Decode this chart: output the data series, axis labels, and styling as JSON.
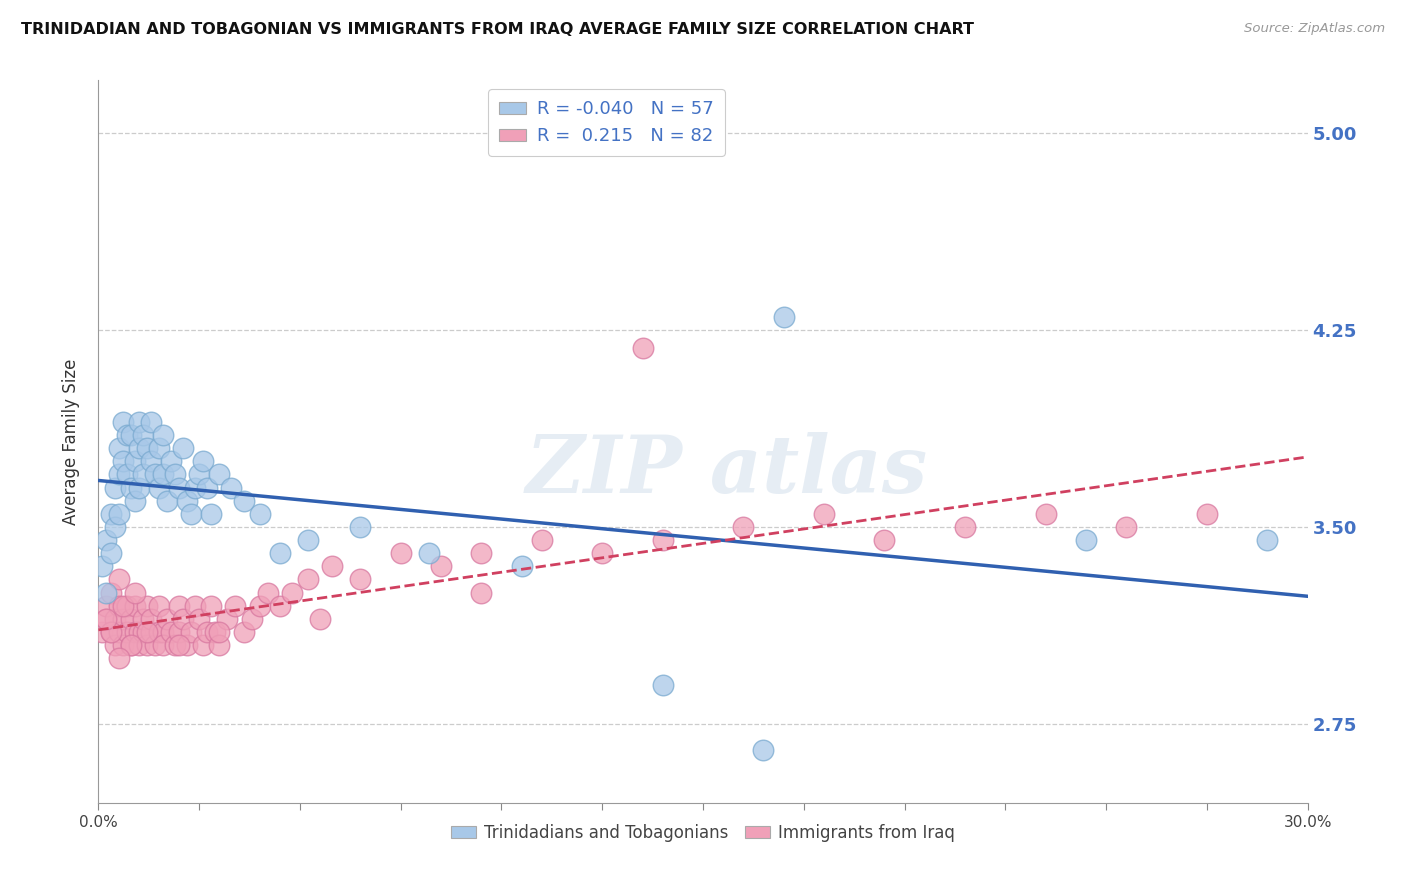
{
  "title": "TRINIDADIAN AND TOBAGONIAN VS IMMIGRANTS FROM IRAQ AVERAGE FAMILY SIZE CORRELATION CHART",
  "source": "Source: ZipAtlas.com",
  "ylabel": "Average Family Size",
  "yticks": [
    2.75,
    3.5,
    4.25,
    5.0
  ],
  "xmin": 0.0,
  "xmax": 0.3,
  "ymin": 2.45,
  "ymax": 5.2,
  "blue_R": -0.04,
  "blue_N": 57,
  "pink_R": 0.215,
  "pink_N": 82,
  "blue_label": "Trinidadians and Tobagonians",
  "pink_label": "Immigrants from Iraq",
  "blue_color": "#a8c8e8",
  "pink_color": "#f0a0b8",
  "blue_line_color": "#3060b0",
  "pink_line_color": "#d04060",
  "blue_edge_color": "#7aaad0",
  "pink_edge_color": "#d878a0",
  "blue_scatter_x": [
    0.001,
    0.002,
    0.002,
    0.003,
    0.003,
    0.004,
    0.004,
    0.005,
    0.005,
    0.005,
    0.006,
    0.006,
    0.007,
    0.007,
    0.008,
    0.008,
    0.009,
    0.009,
    0.01,
    0.01,
    0.01,
    0.011,
    0.011,
    0.012,
    0.013,
    0.013,
    0.014,
    0.015,
    0.015,
    0.016,
    0.016,
    0.017,
    0.018,
    0.019,
    0.02,
    0.021,
    0.022,
    0.023,
    0.024,
    0.025,
    0.026,
    0.027,
    0.028,
    0.03,
    0.033,
    0.036,
    0.04,
    0.045,
    0.052,
    0.065,
    0.082,
    0.105,
    0.14,
    0.17,
    0.245,
    0.165,
    0.29
  ],
  "blue_scatter_y": [
    3.35,
    3.25,
    3.45,
    3.4,
    3.55,
    3.5,
    3.65,
    3.7,
    3.55,
    3.8,
    3.75,
    3.9,
    3.85,
    3.7,
    3.85,
    3.65,
    3.75,
    3.6,
    3.8,
    3.9,
    3.65,
    3.85,
    3.7,
    3.8,
    3.75,
    3.9,
    3.7,
    3.65,
    3.8,
    3.85,
    3.7,
    3.6,
    3.75,
    3.7,
    3.65,
    3.8,
    3.6,
    3.55,
    3.65,
    3.7,
    3.75,
    3.65,
    3.55,
    3.7,
    3.65,
    3.6,
    3.55,
    3.4,
    3.45,
    3.5,
    3.4,
    3.35,
    2.9,
    4.3,
    3.45,
    2.65,
    3.45
  ],
  "pink_scatter_x": [
    0.001,
    0.002,
    0.002,
    0.003,
    0.003,
    0.004,
    0.004,
    0.005,
    0.005,
    0.005,
    0.006,
    0.006,
    0.007,
    0.007,
    0.008,
    0.008,
    0.009,
    0.009,
    0.01,
    0.01,
    0.011,
    0.011,
    0.012,
    0.012,
    0.013,
    0.013,
    0.014,
    0.015,
    0.015,
    0.016,
    0.016,
    0.017,
    0.018,
    0.019,
    0.02,
    0.02,
    0.021,
    0.022,
    0.023,
    0.024,
    0.025,
    0.026,
    0.027,
    0.028,
    0.029,
    0.03,
    0.032,
    0.034,
    0.036,
    0.038,
    0.04,
    0.042,
    0.045,
    0.048,
    0.052,
    0.058,
    0.065,
    0.075,
    0.085,
    0.095,
    0.11,
    0.125,
    0.14,
    0.16,
    0.18,
    0.195,
    0.215,
    0.235,
    0.255,
    0.275,
    0.135,
    0.095,
    0.055,
    0.03,
    0.02,
    0.012,
    0.008,
    0.005,
    0.003,
    0.002,
    0.006,
    0.009
  ],
  "pink_scatter_y": [
    3.1,
    3.15,
    3.2,
    3.1,
    3.25,
    3.15,
    3.05,
    3.1,
    3.2,
    3.3,
    3.15,
    3.05,
    3.1,
    3.2,
    3.15,
    3.05,
    3.1,
    3.2,
    3.1,
    3.05,
    3.1,
    3.15,
    3.05,
    3.2,
    3.1,
    3.15,
    3.05,
    3.1,
    3.2,
    3.1,
    3.05,
    3.15,
    3.1,
    3.05,
    3.2,
    3.1,
    3.15,
    3.05,
    3.1,
    3.2,
    3.15,
    3.05,
    3.1,
    3.2,
    3.1,
    3.05,
    3.15,
    3.2,
    3.1,
    3.15,
    3.2,
    3.25,
    3.2,
    3.25,
    3.3,
    3.35,
    3.3,
    3.4,
    3.35,
    3.4,
    3.45,
    3.4,
    3.45,
    3.5,
    3.55,
    3.45,
    3.5,
    3.55,
    3.5,
    3.55,
    4.18,
    3.25,
    3.15,
    3.1,
    3.05,
    3.1,
    3.05,
    3.0,
    3.1,
    3.15,
    3.2,
    3.25
  ]
}
